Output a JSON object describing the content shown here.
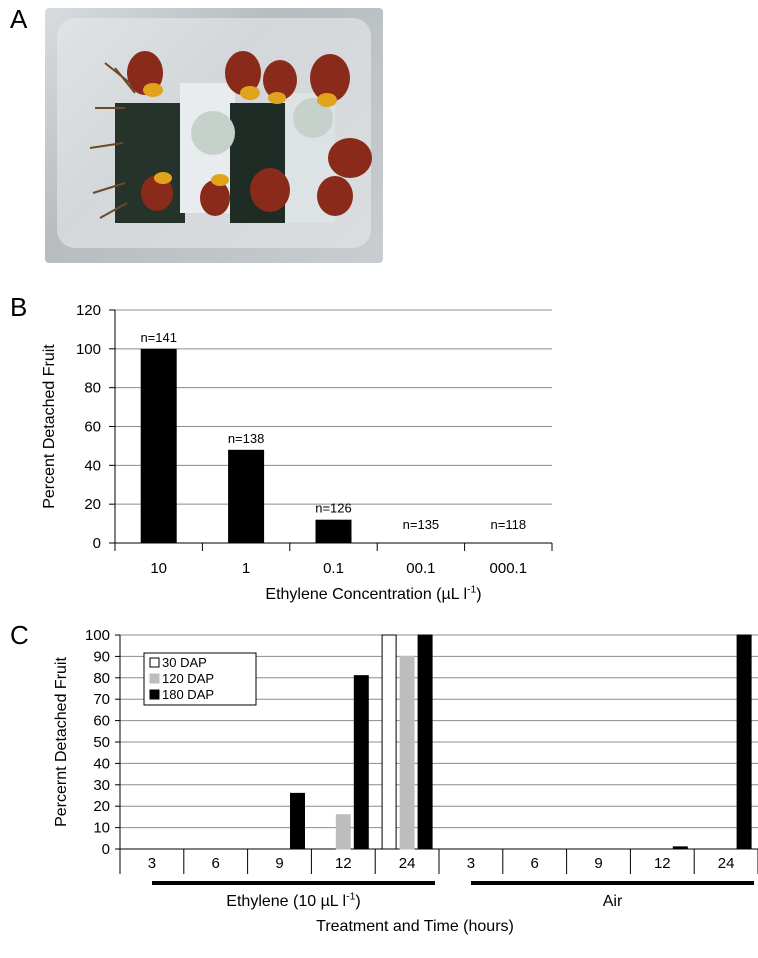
{
  "panels": {
    "a_label": "A",
    "b_label": "B",
    "c_label": "C"
  },
  "photo": {
    "description_icon": "fruit-bunch-photo-icon"
  },
  "chart_data": [
    {
      "type": "bar",
      "title": "",
      "xlabel": "Ethylene Concentration (µL l-1)",
      "xlabel_main": "Ethylene Concentration (µL l",
      "xlabel_sup": "-1",
      "xlabel_end": ")",
      "ylabel": "Percent Detached Fruit",
      "ylim": [
        0,
        120
      ],
      "yticks": [
        "0",
        "20",
        "40",
        "60",
        "80",
        "100",
        "120"
      ],
      "grid": true,
      "categories": [
        "10",
        "1",
        "0.1",
        "00.1",
        "000.1"
      ],
      "values": [
        100,
        48,
        12,
        0,
        0
      ],
      "data_labels": [
        "n=141",
        "n=138",
        "n=126",
        "n=135",
        "n=118"
      ],
      "color": "#000000"
    },
    {
      "type": "bar",
      "title": "",
      "xlabel": "Treatment and Time (hours)",
      "ylabel": "Percernt Detached Fruit",
      "ylim": [
        0,
        100
      ],
      "yticks": [
        "0",
        "10",
        "20",
        "30",
        "40",
        "50",
        "60",
        "70",
        "80",
        "90",
        "100"
      ],
      "grid": true,
      "legend_position": "top-left",
      "categories": [
        "3",
        "6",
        "9",
        "12",
        "24",
        "3",
        "6",
        "9",
        "12",
        "24"
      ],
      "groups": [
        {
          "label": "Ethylene (10 µL l-1)",
          "label_main": "Ethylene (10 µL l",
          "label_sup": "-1",
          "label_end": ")",
          "span": [
            0,
            4
          ]
        },
        {
          "label": "Air",
          "label_main": "Air",
          "label_sup": "",
          "label_end": "",
          "span": [
            5,
            9
          ]
        }
      ],
      "series": [
        {
          "name": "30 DAP",
          "color": "#ffffff",
          "values": [
            0,
            0,
            0,
            0,
            100,
            0,
            0,
            0,
            0,
            0
          ]
        },
        {
          "name": "120 DAP",
          "color": "#bdbdbd",
          "values": [
            0,
            0,
            0,
            16,
            90,
            0,
            0,
            0,
            0,
            0
          ]
        },
        {
          "name": "180 DAP",
          "color": "#000000",
          "values": [
            0,
            0,
            26,
            81,
            100,
            0,
            0,
            0,
            1,
            100
          ]
        }
      ]
    }
  ]
}
